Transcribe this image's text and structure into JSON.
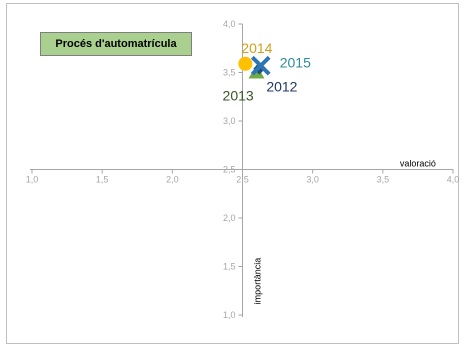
{
  "chart_data": {
    "type": "scatter",
    "title": "Procés d'automatrícula",
    "xlabel": "valoració",
    "ylabel": "importància",
    "xlim": [
      1.0,
      4.0
    ],
    "ylim": [
      1.0,
      4.0
    ],
    "x_ticks": [
      "1,0",
      "1,5",
      "2,0",
      "2,5",
      "3,0",
      "3,5",
      "4,0"
    ],
    "y_ticks": [
      "1,0",
      "1,5",
      "2,0",
      "2,5",
      "3,0",
      "3,5",
      "4,0"
    ],
    "axis_cross": [
      2.5,
      2.5
    ],
    "grid": false,
    "points": [
      {
        "label": "2012",
        "x": 2.62,
        "y": 3.54,
        "marker": "diamond",
        "color": "#1f4e79",
        "label_color": "#1f3864"
      },
      {
        "label": "2013",
        "x": 2.6,
        "y": 3.5,
        "marker": "triangle",
        "color": "#70ad47",
        "label_color": "#375623"
      },
      {
        "label": "2014",
        "x": 2.52,
        "y": 3.59,
        "marker": "circle",
        "color": "#ffc000",
        "label_color": "#d4a017"
      },
      {
        "label": "2015",
        "x": 2.63,
        "y": 3.57,
        "marker": "x",
        "color": "#2e75b6",
        "label_color": "#2e8b9e"
      }
    ]
  }
}
